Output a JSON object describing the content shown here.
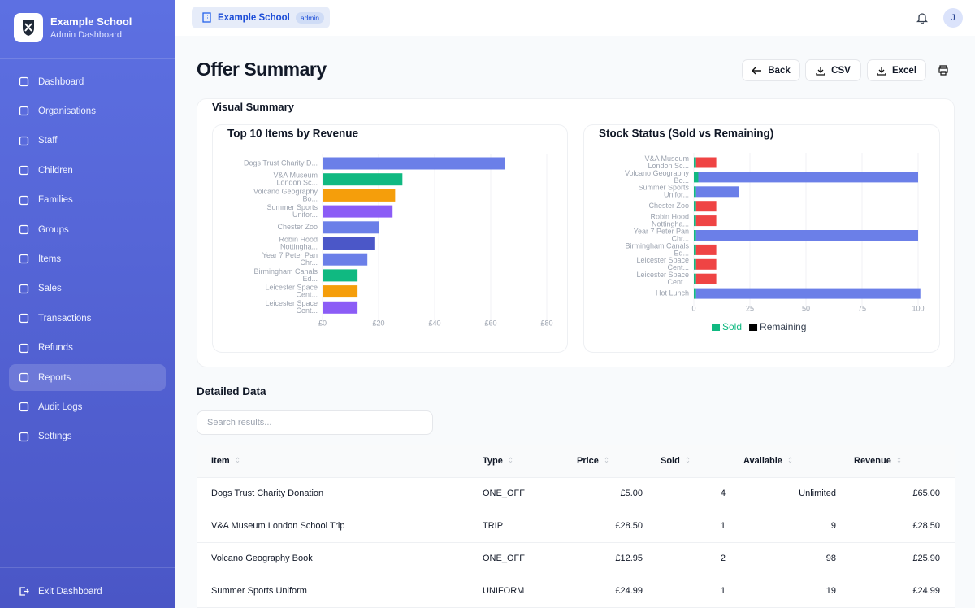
{
  "sidebar": {
    "school": "Example School",
    "subtitle": "Admin Dashboard",
    "nav": [
      "Dashboard",
      "Organisations",
      "Staff",
      "Children",
      "Families",
      "Groups",
      "Items",
      "Sales",
      "Transactions",
      "Refunds",
      "Reports",
      "Audit Logs",
      "Settings"
    ],
    "exit": "Exit Dashboard"
  },
  "topbar": {
    "school": "Example School",
    "role": "admin",
    "avatar": "J"
  },
  "page": {
    "title": "Offer Summary",
    "buttons": [
      "Back",
      "CSV",
      "Excel"
    ],
    "visual_summary": "Visual Summary",
    "detailed_data": "Detailed Data",
    "search_placeholder": "Search results..."
  },
  "chart_data": [
    {
      "type": "hbar",
      "title": "Top 10 Items by Revenue",
      "categories": [
        [
          "Dogs Trust Charity D..."
        ],
        [
          "V&A Museum",
          "London Sc..."
        ],
        [
          "Volcano Geography",
          "Bo..."
        ],
        [
          "Summer Sports",
          "Unifor..."
        ],
        [
          "Chester Zoo"
        ],
        [
          "Robin Hood",
          "Nottingha..."
        ],
        [
          "Year 7 Peter Pan",
          "Chr..."
        ],
        [
          "Birmingham Canals",
          "Ed..."
        ],
        [
          "Leicester Space",
          "Cent..."
        ],
        [
          "Leicester Space",
          "Cent..."
        ]
      ],
      "values": [
        65,
        28.5,
        25.9,
        24.99,
        20,
        18.5,
        16,
        12.5,
        12.5,
        12.5
      ],
      "colors": [
        "#6b7fe8",
        "#10b981",
        "#f59e0b",
        "#8b5cf6",
        "#6b7fe8",
        "#4b57c8",
        "#6b7fe8",
        "#10b981",
        "#f59e0b",
        "#8b5cf6"
      ],
      "xlim": [
        0,
        80
      ],
      "xticks": [
        {
          "value": 0,
          "label": "£0"
        },
        {
          "value": 20,
          "label": "£20"
        },
        {
          "value": 40,
          "label": "£40"
        },
        {
          "value": 60,
          "label": "£60"
        },
        {
          "value": 80,
          "label": "£80"
        }
      ],
      "grid": true
    },
    {
      "type": "stacked_hbar",
      "title": "Stock Status (Sold vs Remaining)",
      "categories": [
        [
          "V&A Museum",
          "London Sc..."
        ],
        [
          "Volcano Geography",
          "Bo..."
        ],
        [
          "Summer Sports",
          "Unifor..."
        ],
        [
          "Chester Zoo"
        ],
        [
          "Robin Hood",
          "Nottingha..."
        ],
        [
          "Year 7 Peter Pan",
          "Chr..."
        ],
        [
          "Birmingham Canals",
          "Ed..."
        ],
        [
          "Leicester Space",
          "Cent..."
        ],
        [
          "Leicester Space",
          "Cent..."
        ],
        [
          "Hot Lunch"
        ]
      ],
      "series": [
        {
          "name": "Sold",
          "color": "#10b981",
          "values": [
            1,
            2,
            1,
            1,
            1,
            1,
            1,
            1,
            1,
            1
          ]
        },
        {
          "name": "Remaining",
          "color": "#000000",
          "colors": [
            "#ef4444",
            "#6b7fe8",
            "#6b7fe8",
            "#ef4444",
            "#ef4444",
            "#6b7fe8",
            "#ef4444",
            "#ef4444",
            "#ef4444",
            "#6b7fe8"
          ],
          "values": [
            9,
            98,
            19,
            9,
            9,
            99,
            9,
            9,
            9,
            100
          ]
        }
      ],
      "xlim": [
        0,
        100
      ],
      "xticks": [
        0,
        25,
        50,
        75,
        100
      ],
      "grid": true,
      "legend": "bottom"
    }
  ],
  "table": {
    "columns": [
      "Item",
      "Type",
      "Price",
      "Sold",
      "Available",
      "Revenue"
    ],
    "rows": [
      [
        "Dogs Trust Charity Donation",
        "ONE_OFF",
        "£5.00",
        "4",
        "Unlimited",
        "£65.00"
      ],
      [
        "V&A Museum London School Trip",
        "TRIP",
        "£28.50",
        "1",
        "9",
        "£28.50"
      ],
      [
        "Volcano Geography Book",
        "ONE_OFF",
        "£12.95",
        "2",
        "98",
        "£25.90"
      ],
      [
        "Summer Sports Uniform",
        "UNIFORM",
        "£24.99",
        "1",
        "19",
        "£24.99"
      ]
    ]
  }
}
